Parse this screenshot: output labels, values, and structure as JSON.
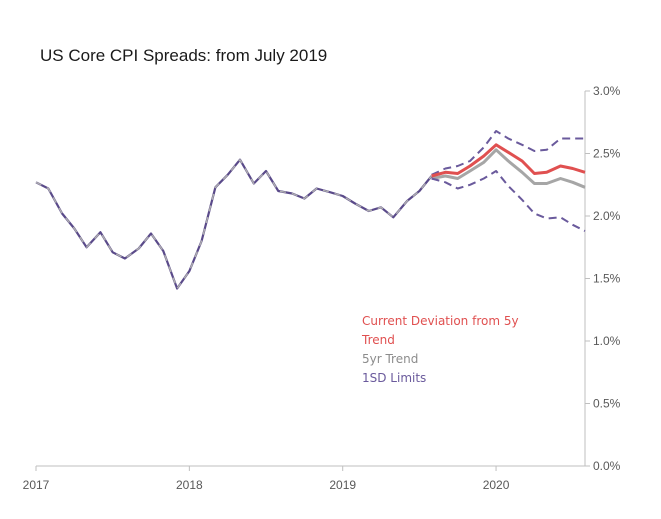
{
  "chart_data": {
    "type": "line",
    "title": "US Core CPI Spreads: from July 2019",
    "x_ticks": [
      "2017",
      "2018",
      "2019",
      "2020"
    ],
    "y_ticks": [
      "0.0%",
      "0.5%",
      "1.0%",
      "1.5%",
      "2.0%",
      "2.5%",
      "3.0%"
    ],
    "ylim": [
      0,
      3.0
    ],
    "grid": false,
    "legend": [
      {
        "label": "Current Deviation from 5y Trend",
        "lines": [
          "Current Deviation from 5y",
          "Trend"
        ],
        "color": "#e05050"
      },
      {
        "label": "5yr Trend",
        "lines": [
          "5yr Trend"
        ],
        "color": "#8c8c8c"
      },
      {
        "label": "1SD Limits",
        "lines": [
          "1SD Limits"
        ],
        "color": "#6a5a9c"
      }
    ],
    "legend_position": "center-right",
    "series": [
      {
        "name": "Current Deviation from 5y Trend",
        "color": "#e05050",
        "style": "solid",
        "x": [
          2019.58,
          2019.67,
          2019.75,
          2019.83,
          2019.92,
          2020.0,
          2020.08,
          2020.17,
          2020.25,
          2020.33,
          2020.42,
          2020.5,
          2020.58
        ],
        "y": [
          2.32,
          2.35,
          2.34,
          2.4,
          2.48,
          2.57,
          2.51,
          2.44,
          2.34,
          2.35,
          2.4,
          2.38,
          2.35
        ]
      },
      {
        "name": "5yr Trend",
        "color": "#a6a6a6",
        "style": "solid",
        "x": [
          2019.58,
          2019.67,
          2019.75,
          2019.83,
          2019.92,
          2020.0,
          2020.08,
          2020.17,
          2020.25,
          2020.33,
          2020.42,
          2020.5,
          2020.58
        ],
        "y": [
          2.3,
          2.32,
          2.3,
          2.36,
          2.43,
          2.53,
          2.44,
          2.35,
          2.26,
          2.26,
          2.3,
          2.27,
          2.23
        ]
      },
      {
        "name": "1SD Limits upper",
        "color": "#6a5a9c",
        "style": "dashed",
        "x": [
          2019.58,
          2019.67,
          2019.75,
          2019.83,
          2019.92,
          2020.0,
          2020.08,
          2020.17,
          2020.25,
          2020.33,
          2020.42,
          2020.5,
          2020.58
        ],
        "y": [
          2.33,
          2.38,
          2.4,
          2.44,
          2.55,
          2.68,
          2.62,
          2.57,
          2.52,
          2.53,
          2.62,
          2.62,
          2.62
        ]
      },
      {
        "name": "1SD Limits lower",
        "color": "#6a5a9c",
        "style": "dashed",
        "x": [
          2019.58,
          2019.67,
          2019.75,
          2019.83,
          2019.92,
          2020.0,
          2020.08,
          2020.17,
          2020.25,
          2020.33,
          2020.42,
          2020.5,
          2020.58
        ],
        "y": [
          2.3,
          2.27,
          2.22,
          2.25,
          2.3,
          2.36,
          2.24,
          2.13,
          2.02,
          1.98,
          1.99,
          1.93,
          1.88
        ]
      },
      {
        "name": "History",
        "color": "#5a4a8a",
        "style": "solid-dashed",
        "x": [
          2017.0,
          2017.08,
          2017.17,
          2017.25,
          2017.33,
          2017.42,
          2017.5,
          2017.58,
          2017.67,
          2017.75,
          2017.83,
          2017.92,
          2018.0,
          2018.08,
          2018.17,
          2018.25,
          2018.33,
          2018.42,
          2018.5,
          2018.58,
          2018.67,
          2018.75,
          2018.83,
          2018.92,
          2019.0,
          2019.08,
          2019.17,
          2019.25,
          2019.33,
          2019.42,
          2019.5,
          2019.58
        ],
        "y": [
          2.27,
          2.22,
          2.02,
          1.9,
          1.75,
          1.87,
          1.71,
          1.66,
          1.74,
          1.86,
          1.72,
          1.42,
          1.56,
          1.8,
          2.23,
          2.33,
          2.45,
          2.26,
          2.36,
          2.2,
          2.18,
          2.14,
          2.22,
          2.19,
          2.16,
          2.1,
          2.04,
          2.07,
          1.99,
          2.12,
          2.2,
          2.32
        ]
      }
    ]
  }
}
